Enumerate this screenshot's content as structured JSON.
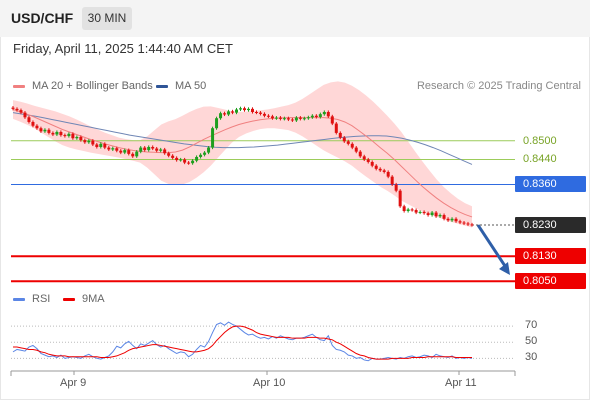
{
  "header": {
    "symbol": "USD/CHF",
    "timeframe": "30 MIN"
  },
  "datetime": "Friday, April 11, 2025 1:44:40 AM CET",
  "legend": {
    "ma20_bb": {
      "label": "MA 20 + Bollinger Bands",
      "color": "#f08080"
    },
    "ma50": {
      "label": "MA 50",
      "color": "#2f5597"
    },
    "credit": "Research © 2025 Trading Central"
  },
  "rsi_legend": {
    "rsi": {
      "label": "RSI",
      "color": "#5b86e5"
    },
    "ma9": {
      "label": "9MA",
      "color": "#ee0000"
    }
  },
  "colors": {
    "bull": "#1e9e1e",
    "bear": "#e01010",
    "resistance": "#9ccc5a",
    "pivot": "#2f6be0",
    "support": "#ee0000",
    "arrow": "#2f5fa8",
    "band": "#ffc9c9"
  },
  "chart_data": [
    {
      "type": "candlestick",
      "ylim": [
        0.799,
        0.864
      ],
      "levels": [
        {
          "value": "0.8500",
          "num": 0.85,
          "kind": "resistance"
        },
        {
          "value": "0.8440",
          "num": 0.844,
          "kind": "resistance"
        },
        {
          "value": "0.8360",
          "num": 0.836,
          "kind": "pivot"
        },
        {
          "value": "0.8230",
          "num": 0.823,
          "kind": "last"
        },
        {
          "value": "0.8130",
          "num": 0.813,
          "kind": "support"
        },
        {
          "value": "0.8050",
          "num": 0.805,
          "kind": "support"
        }
      ],
      "x_ticks": [
        "Apr 9",
        "Apr 10",
        "Apr 11"
      ],
      "close": [
        0.8602,
        0.8598,
        0.859,
        0.8575,
        0.856,
        0.8548,
        0.854,
        0.853,
        0.8535,
        0.8525,
        0.852,
        0.8528,
        0.8518,
        0.8515,
        0.8522,
        0.8508,
        0.8512,
        0.8502,
        0.8495,
        0.85,
        0.8488,
        0.848,
        0.849,
        0.8478,
        0.8472,
        0.8476,
        0.8468,
        0.8462,
        0.847,
        0.8458,
        0.845,
        0.8465,
        0.8478,
        0.847,
        0.848,
        0.8475,
        0.8468,
        0.8472,
        0.846,
        0.8452,
        0.8445,
        0.8438,
        0.844,
        0.843,
        0.8428,
        0.8436,
        0.8448,
        0.8455,
        0.8462,
        0.8478,
        0.854,
        0.8572,
        0.8588,
        0.8584,
        0.8594,
        0.859,
        0.86,
        0.8604,
        0.8598,
        0.8602,
        0.8592,
        0.859,
        0.8586,
        0.858,
        0.8578,
        0.8572,
        0.8574,
        0.857,
        0.8572,
        0.8568,
        0.8565,
        0.8574,
        0.857,
        0.8572,
        0.8575,
        0.858,
        0.8576,
        0.8585,
        0.8592,
        0.8578,
        0.8555,
        0.8525,
        0.851,
        0.8498,
        0.849,
        0.8478,
        0.8465,
        0.845,
        0.844,
        0.8432,
        0.842,
        0.841,
        0.8405,
        0.84,
        0.8385,
        0.836,
        0.834,
        0.829,
        0.8275,
        0.828,
        0.8278,
        0.827,
        0.8272,
        0.8268,
        0.8262,
        0.827,
        0.8258,
        0.8262,
        0.825,
        0.8245,
        0.825,
        0.8242,
        0.8238,
        0.8235,
        0.8232,
        0.823
      ],
      "ma20_mid": [
        0.86,
        0.8593,
        0.8585,
        0.8576,
        0.8566,
        0.8556,
        0.8546,
        0.8536,
        0.8528,
        0.852,
        0.8512,
        0.8504,
        0.8497,
        0.849,
        0.8484,
        0.8478,
        0.8473,
        0.8469,
        0.8466,
        0.8464,
        0.8463,
        0.8462,
        0.8462,
        0.8464,
        0.847,
        0.848,
        0.8492,
        0.8504,
        0.8515,
        0.8525,
        0.8535,
        0.8544,
        0.8552,
        0.8558,
        0.8563,
        0.8567,
        0.857,
        0.8572,
        0.8573,
        0.8574,
        0.8574,
        0.8574,
        0.8574,
        0.8574,
        0.8574,
        0.8572,
        0.8568,
        0.856,
        0.8548,
        0.8532,
        0.8515,
        0.8497,
        0.8478,
        0.846,
        0.844,
        0.8418,
        0.8396,
        0.8374,
        0.8353,
        0.8334,
        0.8316,
        0.83,
        0.8286,
        0.8274,
        0.8264,
        0.8256
      ],
      "ma20_band": [
        0.003,
        0.0032,
        0.0034,
        0.0036,
        0.004,
        0.0044,
        0.0048,
        0.005,
        0.005,
        0.0048,
        0.0045,
        0.0042,
        0.0039,
        0.0036,
        0.0034,
        0.0032,
        0.0032,
        0.0033,
        0.0036,
        0.005,
        0.007,
        0.009,
        0.01,
        0.0105,
        0.011,
        0.0112,
        0.011,
        0.0105,
        0.0095,
        0.008,
        0.0065,
        0.005,
        0.004,
        0.0035,
        0.0032,
        0.003,
        0.003,
        0.0032,
        0.0036,
        0.004,
        0.0048,
        0.006,
        0.0075,
        0.009,
        0.0105,
        0.0115,
        0.0122,
        0.0126,
        0.0128,
        0.013,
        0.013,
        0.0128,
        0.0125,
        0.012,
        0.0115,
        0.011,
        0.01,
        0.009,
        0.008,
        0.007,
        0.006,
        0.0052,
        0.0046,
        0.004,
        0.0036,
        0.0034
      ],
      "ma50": [
        0.859,
        0.8586,
        0.8582,
        0.8578,
        0.8573,
        0.8568,
        0.8563,
        0.8558,
        0.8553,
        0.8548,
        0.8543,
        0.8538,
        0.8533,
        0.8528,
        0.8523,
        0.8518,
        0.8514,
        0.851,
        0.8506,
        0.8502,
        0.8498,
        0.8494,
        0.849,
        0.8487,
        0.8484,
        0.8481,
        0.8479,
        0.8478,
        0.8478,
        0.8478,
        0.8479,
        0.848,
        0.8482,
        0.8484,
        0.8486,
        0.8489,
        0.8492,
        0.8495,
        0.8498,
        0.8501,
        0.8504,
        0.8507,
        0.851,
        0.8512,
        0.8514,
        0.8515,
        0.8516,
        0.8516,
        0.8515,
        0.8512,
        0.8508,
        0.8502,
        0.8495,
        0.8487,
        0.8478,
        0.8468,
        0.8457,
        0.8446,
        0.8435,
        0.8424
      ]
    },
    {
      "type": "line",
      "name": "RSI",
      "ylim": [
        18,
        85
      ],
      "y_ticks": [
        "70",
        "50",
        "30"
      ],
      "y_tick_nums": [
        70,
        50,
        30
      ],
      "rsi": [
        38,
        41,
        40,
        39,
        44,
        46,
        42,
        36,
        34,
        32,
        33,
        31,
        34,
        30,
        31,
        32,
        31,
        30,
        33,
        35,
        32,
        30,
        29,
        31,
        33,
        38,
        45,
        43,
        48,
        51,
        46,
        42,
        48,
        46,
        49,
        52,
        47,
        44,
        46,
        42,
        39,
        36,
        38,
        37,
        32,
        35,
        41,
        46,
        44,
        51,
        62,
        72,
        74,
        71,
        75,
        72,
        70,
        66,
        62,
        59,
        60,
        57,
        55,
        56,
        54,
        57,
        55,
        58,
        56,
        54,
        53,
        55,
        55,
        56,
        58,
        60,
        56,
        53,
        52,
        58,
        46,
        41,
        40,
        38,
        34,
        33,
        30,
        31,
        28,
        27,
        30,
        29,
        29,
        30,
        31,
        30,
        29,
        31,
        30,
        32,
        33,
        31,
        32,
        34,
        33,
        31,
        35,
        33,
        32,
        31,
        33,
        30,
        31,
        30,
        31,
        30
      ],
      "ma9": [
        44,
        44,
        43,
        42,
        41,
        41,
        40,
        38,
        37,
        35,
        34,
        33,
        33,
        33,
        32,
        32,
        32,
        32,
        32,
        32,
        32,
        32,
        31,
        31,
        31,
        32,
        33,
        35,
        37,
        40,
        42,
        43,
        44,
        45,
        46,
        47,
        47,
        46,
        45,
        44,
        43,
        42,
        41,
        40,
        39,
        38,
        38,
        39,
        40,
        42,
        46,
        52,
        57,
        62,
        66,
        69,
        70,
        70,
        69,
        67,
        65,
        62,
        60,
        59,
        58,
        57,
        56,
        56,
        56,
        56,
        55,
        55,
        55,
        55,
        56,
        56,
        56,
        55,
        55,
        54,
        53,
        50,
        48,
        45,
        42,
        39,
        36,
        34,
        33,
        31,
        30,
        29,
        29,
        29,
        29,
        30,
        30,
        30,
        30,
        30,
        31,
        31,
        31,
        31,
        32,
        32,
        32,
        32,
        32,
        32,
        32,
        31,
        31,
        31,
        31,
        31
      ]
    }
  ]
}
